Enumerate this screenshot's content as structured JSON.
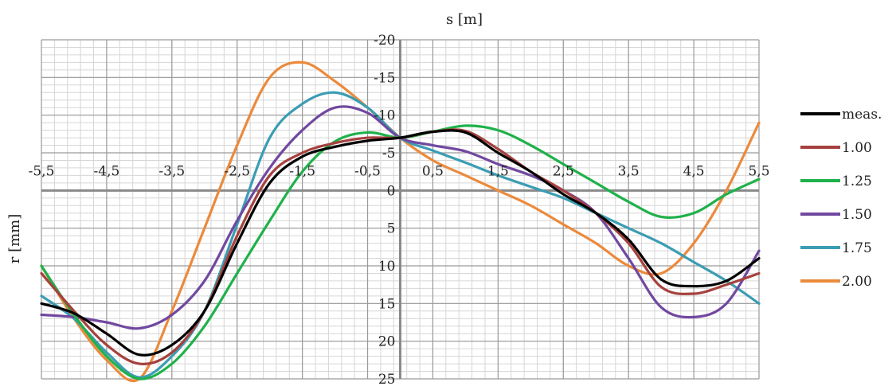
{
  "chart_data": {
    "type": "line",
    "xlabel": "s  [m]",
    "ylabel": "r  [mm]",
    "xlim": [
      -5.5,
      5.5
    ],
    "ylim": [
      25,
      -20
    ],
    "y_axis_reversed": true,
    "grid": true,
    "minor_grid": true,
    "legend_position": "right",
    "x_ticks": [
      -5.5,
      -4.5,
      -3.5,
      -2.5,
      -1.5,
      -0.5,
      0.5,
      1.5,
      2.5,
      3.5,
      4.5,
      5.5
    ],
    "x_tick_labels": [
      "-5,5",
      "-4,5",
      "-3,5",
      "-2,5",
      "-1,5",
      "-0,5",
      "0,5",
      "1,5",
      "2,5",
      "3,5",
      "4,5",
      "5,5"
    ],
    "y_ticks": [
      -20,
      -15,
      -10,
      -5,
      0,
      5,
      10,
      15,
      20,
      25
    ],
    "y_tick_labels": [
      "-20",
      "-15",
      "-10",
      "-5",
      "0",
      "5",
      "10",
      "15",
      "20",
      "25"
    ],
    "series": [
      {
        "name": "meas.",
        "color": "#000000",
        "points": [
          [
            -5.5,
            15
          ],
          [
            -5,
            16.3
          ],
          [
            -4.5,
            19
          ],
          [
            -4,
            21.8
          ],
          [
            -3.5,
            20.5
          ],
          [
            -3,
            16
          ],
          [
            -2.5,
            7
          ],
          [
            -2,
            -1
          ],
          [
            -1.5,
            -4.5
          ],
          [
            -1,
            -5.8
          ],
          [
            -0.5,
            -6.6
          ],
          [
            0,
            -7
          ],
          [
            0.5,
            -7.8
          ],
          [
            1,
            -7.7
          ],
          [
            1.5,
            -5
          ],
          [
            2,
            -2.5
          ],
          [
            2.5,
            0.5
          ],
          [
            3,
            3
          ],
          [
            3.5,
            6.5
          ],
          [
            4,
            11.8
          ],
          [
            4.5,
            12.7
          ],
          [
            5,
            12
          ],
          [
            5.5,
            9
          ]
        ]
      },
      {
        "name": "1.00",
        "color": "#a5413e",
        "points": [
          [
            -5.5,
            11
          ],
          [
            -5,
            16
          ],
          [
            -4.5,
            20.5
          ],
          [
            -4,
            23
          ],
          [
            -3.5,
            21.5
          ],
          [
            -3,
            16
          ],
          [
            -2.5,
            6
          ],
          [
            -2,
            -2
          ],
          [
            -1.5,
            -5
          ],
          [
            -1,
            -6.3
          ],
          [
            -0.5,
            -7
          ],
          [
            0,
            -7
          ],
          [
            0.5,
            -7.8
          ],
          [
            1,
            -7.9
          ],
          [
            1.5,
            -5.5
          ],
          [
            2,
            -2.5
          ],
          [
            2.5,
            0
          ],
          [
            3,
            3
          ],
          [
            3.5,
            7
          ],
          [
            4,
            12.8
          ],
          [
            4.5,
            13.7
          ],
          [
            5,
            12.5
          ],
          [
            5.5,
            11
          ]
        ]
      },
      {
        "name": "1.25",
        "color": "#1fb14a",
        "points": [
          [
            -5.5,
            10
          ],
          [
            -5,
            16.5
          ],
          [
            -4.5,
            22
          ],
          [
            -4,
            25
          ],
          [
            -3.5,
            23
          ],
          [
            -3,
            18
          ],
          [
            -2.5,
            11
          ],
          [
            -2,
            4
          ],
          [
            -1.5,
            -2.5
          ],
          [
            -1,
            -6.5
          ],
          [
            -0.5,
            -7.7
          ],
          [
            0,
            -7
          ],
          [
            0.5,
            -7.8
          ],
          [
            1,
            -8.6
          ],
          [
            1.5,
            -8
          ],
          [
            2,
            -6
          ],
          [
            2.5,
            -3.5
          ],
          [
            3,
            -1
          ],
          [
            3.5,
            1.5
          ],
          [
            4,
            3.5
          ],
          [
            4.5,
            3
          ],
          [
            5,
            0.5
          ],
          [
            5.5,
            -1.5
          ]
        ]
      },
      {
        "name": "1.50",
        "color": "#7148a0",
        "points": [
          [
            -5.5,
            16.5
          ],
          [
            -5,
            16.8
          ],
          [
            -4.5,
            17.5
          ],
          [
            -4,
            18.3
          ],
          [
            -3.5,
            16.5
          ],
          [
            -3,
            12
          ],
          [
            -2.5,
            4
          ],
          [
            -2,
            -3
          ],
          [
            -1.5,
            -8
          ],
          [
            -1,
            -11
          ],
          [
            -0.5,
            -10.3
          ],
          [
            0,
            -7
          ],
          [
            0.5,
            -6
          ],
          [
            1,
            -5.2
          ],
          [
            1.5,
            -3.5
          ],
          [
            2,
            -2
          ],
          [
            2.5,
            0
          ],
          [
            3,
            3
          ],
          [
            3.5,
            9
          ],
          [
            4,
            15.5
          ],
          [
            4.5,
            16.8
          ],
          [
            5,
            15
          ],
          [
            5.5,
            8
          ]
        ]
      },
      {
        "name": "1.75",
        "color": "#3b9db3",
        "points": [
          [
            -5.5,
            14
          ],
          [
            -5,
            17
          ],
          [
            -4.5,
            21.5
          ],
          [
            -4,
            24.8
          ],
          [
            -3.5,
            22
          ],
          [
            -3,
            16
          ],
          [
            -2.5,
            4.5
          ],
          [
            -2,
            -7
          ],
          [
            -1.5,
            -11.5
          ],
          [
            -1,
            -13
          ],
          [
            -0.5,
            -11
          ],
          [
            0,
            -7
          ],
          [
            0.5,
            -5.3
          ],
          [
            1,
            -3.7
          ],
          [
            1.5,
            -2
          ],
          [
            2,
            -0.5
          ],
          [
            2.5,
            1
          ],
          [
            3,
            3
          ],
          [
            3.5,
            5
          ],
          [
            4,
            7
          ],
          [
            4.5,
            9.5
          ],
          [
            5,
            12
          ],
          [
            5.5,
            15
          ]
        ]
      },
      {
        "name": "2.00",
        "color": "#eb8a3c",
        "points": [
          [
            -5.5,
            10
          ],
          [
            -5,
            17
          ],
          [
            -4.5,
            22.5
          ],
          [
            -4,
            25
          ],
          [
            -3.5,
            16
          ],
          [
            -3,
            5
          ],
          [
            -2.5,
            -6
          ],
          [
            -2,
            -15
          ],
          [
            -1.5,
            -17
          ],
          [
            -1,
            -14.5
          ],
          [
            -0.5,
            -11
          ],
          [
            0,
            -7
          ],
          [
            0.5,
            -4
          ],
          [
            1,
            -2
          ],
          [
            1.5,
            0
          ],
          [
            2,
            2
          ],
          [
            2.5,
            4.5
          ],
          [
            3,
            7
          ],
          [
            3.5,
            10
          ],
          [
            4,
            11
          ],
          [
            4.5,
            7
          ],
          [
            5,
            0
          ],
          [
            5.5,
            -9
          ]
        ]
      }
    ]
  }
}
